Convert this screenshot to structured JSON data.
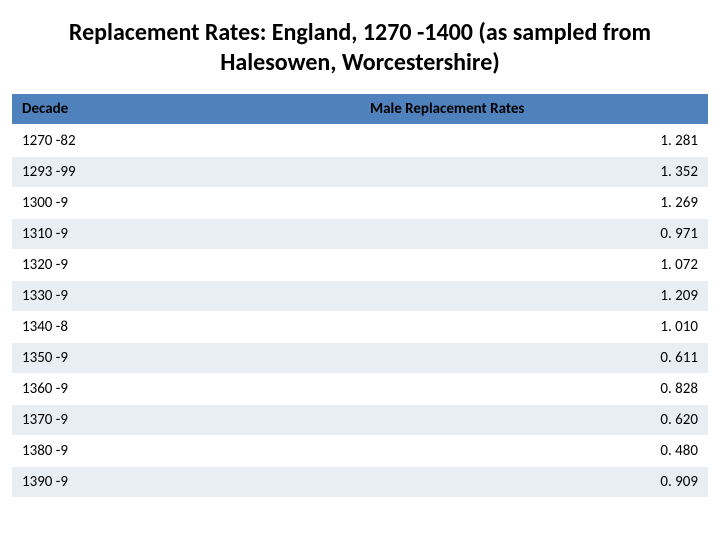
{
  "title": "Replacement Rates: England, 1270 -1400 (as sampled from Halesowen, Worcestershire)",
  "table": {
    "type": "table",
    "header_bg": "#4f81bd",
    "row_alt_bg": "#e9edf4",
    "row_bg": "#ffffff",
    "columns": [
      {
        "label": "Decade",
        "align": "left"
      },
      {
        "label": "Male Replacement Rates",
        "align": "right"
      }
    ],
    "rows": [
      {
        "decade": "1270 -82",
        "rate": "1. 281"
      },
      {
        "decade": "1293 -99",
        "rate": "1. 352"
      },
      {
        "decade": "1300 -9",
        "rate": "1. 269"
      },
      {
        "decade": "1310 -9",
        "rate": "0. 971"
      },
      {
        "decade": "1320 -9",
        "rate": "1. 072"
      },
      {
        "decade": "1330 -9",
        "rate": "1. 209"
      },
      {
        "decade": "1340 -8",
        "rate": "1. 010"
      },
      {
        "decade": "1350 -9",
        "rate": "0. 611"
      },
      {
        "decade": "1360 -9",
        "rate": "0. 828"
      },
      {
        "decade": "1370 -9",
        "rate": "0. 620"
      },
      {
        "decade": "1380 -9",
        "rate": "0. 480"
      },
      {
        "decade": "1390 -9",
        "rate": "0. 909"
      }
    ]
  }
}
